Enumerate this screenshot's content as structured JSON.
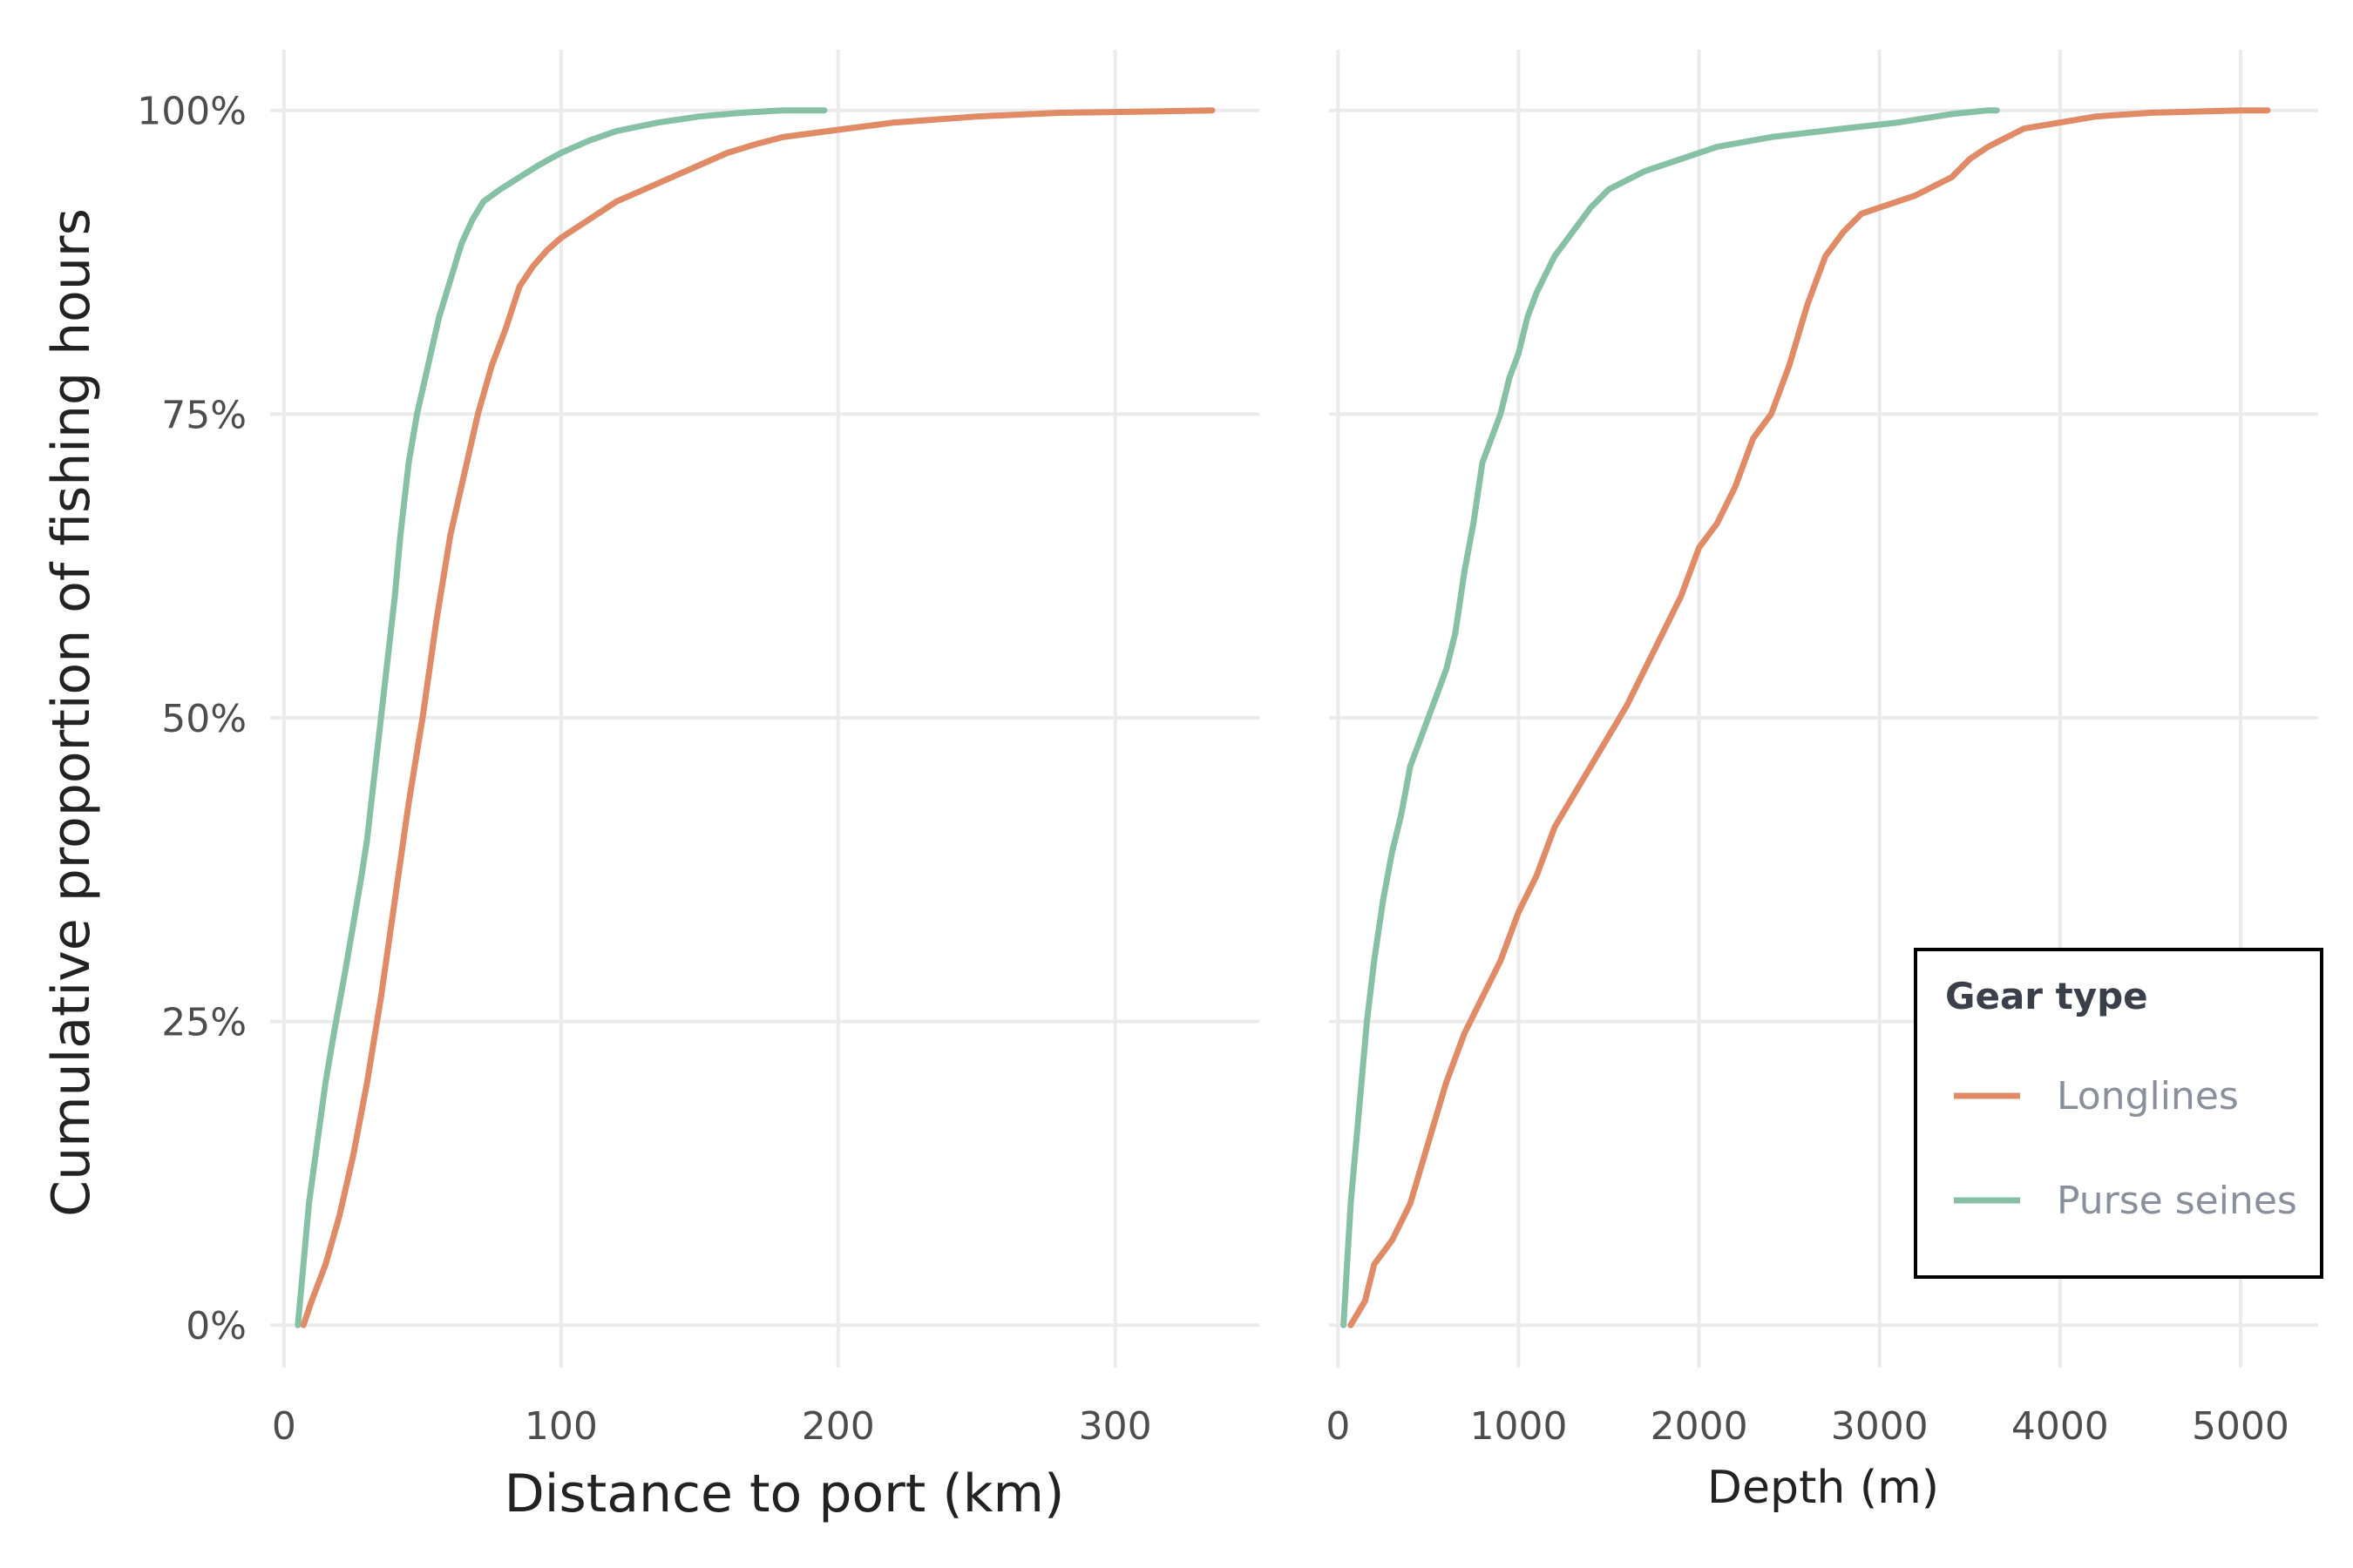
{
  "chart_data": [
    {
      "type": "line",
      "xlabel": "Distance to port (km)",
      "ylabel": "Cumulative proportion of fishing hours",
      "xlim": [
        -5,
        352
      ],
      "ylim": [
        -0.035,
        1.05
      ],
      "x_ticks": [
        0,
        100,
        200,
        300
      ],
      "x_tick_labels": [
        "0",
        "100",
        "200",
        "300"
      ],
      "y_ticks": [
        0,
        0.25,
        0.5,
        0.75,
        1.0
      ],
      "y_tick_labels": [
        "0%",
        "25%",
        "50%",
        "75%",
        "100%"
      ],
      "grid": true,
      "series": [
        {
          "name": "Longlines",
          "color": "#E08B65",
          "points": [
            [
              7,
              0
            ],
            [
              10,
              0.02
            ],
            [
              15,
              0.05
            ],
            [
              20,
              0.09
            ],
            [
              25,
              0.14
            ],
            [
              30,
              0.2
            ],
            [
              35,
              0.27
            ],
            [
              40,
              0.35
            ],
            [
              45,
              0.43
            ],
            [
              50,
              0.5
            ],
            [
              55,
              0.58
            ],
            [
              60,
              0.65
            ],
            [
              65,
              0.7
            ],
            [
              70,
              0.75
            ],
            [
              75,
              0.79
            ],
            [
              80,
              0.82
            ],
            [
              85,
              0.855
            ],
            [
              90,
              0.872
            ],
            [
              95,
              0.885
            ],
            [
              100,
              0.895
            ],
            [
              110,
              0.91
            ],
            [
              120,
              0.925
            ],
            [
              130,
              0.935
            ],
            [
              140,
              0.945
            ],
            [
              150,
              0.955
            ],
            [
              160,
              0.965
            ],
            [
              170,
              0.972
            ],
            [
              180,
              0.978
            ],
            [
              200,
              0.984
            ],
            [
              220,
              0.99
            ],
            [
              250,
              0.995
            ],
            [
              280,
              0.998
            ],
            [
              310,
              0.999
            ],
            [
              335,
              1.0
            ]
          ]
        },
        {
          "name": "Purse seines",
          "color": "#86C1A5",
          "points": [
            [
              5,
              0
            ],
            [
              7,
              0.05
            ],
            [
              9,
              0.1
            ],
            [
              12,
              0.15
            ],
            [
              15,
              0.2
            ],
            [
              18,
              0.24
            ],
            [
              22,
              0.29
            ],
            [
              25,
              0.33
            ],
            [
              28,
              0.37
            ],
            [
              30,
              0.4
            ],
            [
              32,
              0.44
            ],
            [
              34,
              0.48
            ],
            [
              37,
              0.54
            ],
            [
              40,
              0.6
            ],
            [
              42,
              0.65
            ],
            [
              45,
              0.71
            ],
            [
              48,
              0.75
            ],
            [
              52,
              0.79
            ],
            [
              56,
              0.83
            ],
            [
              60,
              0.86
            ],
            [
              64,
              0.89
            ],
            [
              68,
              0.91
            ],
            [
              72,
              0.925
            ],
            [
              78,
              0.935
            ],
            [
              85,
              0.945
            ],
            [
              92,
              0.955
            ],
            [
              100,
              0.965
            ],
            [
              110,
              0.975
            ],
            [
              120,
              0.983
            ],
            [
              135,
              0.99
            ],
            [
              150,
              0.995
            ],
            [
              165,
              0.998
            ],
            [
              180,
              1.0
            ],
            [
              195,
              1.0
            ]
          ]
        }
      ]
    },
    {
      "type": "line",
      "xlabel": "Depth (m)",
      "ylabel": "",
      "xlim": [
        -50,
        5430
      ],
      "ylim": [
        -0.035,
        1.05
      ],
      "x_ticks": [
        0,
        1000,
        2000,
        3000,
        4000,
        5000
      ],
      "x_tick_labels": [
        "0",
        "1000",
        "2000",
        "3000",
        "4000",
        "5000"
      ],
      "y_ticks": [
        0,
        0.25,
        0.5,
        0.75,
        1.0
      ],
      "grid": true,
      "series": [
        {
          "name": "Longlines",
          "color": "#E08B65",
          "points": [
            [
              70,
              0
            ],
            [
              150,
              0.02
            ],
            [
              200,
              0.05
            ],
            [
              300,
              0.07
            ],
            [
              400,
              0.1
            ],
            [
              500,
              0.15
            ],
            [
              600,
              0.2
            ],
            [
              700,
              0.24
            ],
            [
              800,
              0.27
            ],
            [
              900,
              0.3
            ],
            [
              1000,
              0.34
            ],
            [
              1100,
              0.37
            ],
            [
              1200,
              0.41
            ],
            [
              1400,
              0.46
            ],
            [
              1600,
              0.51
            ],
            [
              1800,
              0.57
            ],
            [
              1900,
              0.6
            ],
            [
              2000,
              0.64
            ],
            [
              2100,
              0.66
            ],
            [
              2200,
              0.69
            ],
            [
              2300,
              0.73
            ],
            [
              2400,
              0.75
            ],
            [
              2500,
              0.79
            ],
            [
              2600,
              0.84
            ],
            [
              2700,
              0.88
            ],
            [
              2800,
              0.9
            ],
            [
              2900,
              0.915
            ],
            [
              3000,
              0.92
            ],
            [
              3200,
              0.93
            ],
            [
              3400,
              0.945
            ],
            [
              3500,
              0.96
            ],
            [
              3600,
              0.97
            ],
            [
              3800,
              0.985
            ],
            [
              4000,
              0.99
            ],
            [
              4200,
              0.995
            ],
            [
              4500,
              0.998
            ],
            [
              5000,
              1.0
            ],
            [
              5150,
              1.0
            ]
          ]
        },
        {
          "name": "Purse seines",
          "color": "#86C1A5",
          "points": [
            [
              30,
              0
            ],
            [
              50,
              0.05
            ],
            [
              70,
              0.1
            ],
            [
              100,
              0.15
            ],
            [
              130,
              0.2
            ],
            [
              160,
              0.25
            ],
            [
              200,
              0.3
            ],
            [
              250,
              0.35
            ],
            [
              300,
              0.39
            ],
            [
              350,
              0.42
            ],
            [
              400,
              0.46
            ],
            [
              450,
              0.48
            ],
            [
              500,
              0.5
            ],
            [
              550,
              0.52
            ],
            [
              600,
              0.54
            ],
            [
              650,
              0.57
            ],
            [
              700,
              0.62
            ],
            [
              750,
              0.66
            ],
            [
              800,
              0.71
            ],
            [
              900,
              0.75
            ],
            [
              950,
              0.78
            ],
            [
              1000,
              0.8
            ],
            [
              1050,
              0.83
            ],
            [
              1100,
              0.85
            ],
            [
              1200,
              0.88
            ],
            [
              1300,
              0.9
            ],
            [
              1400,
              0.92
            ],
            [
              1500,
              0.935
            ],
            [
              1700,
              0.95
            ],
            [
              1900,
              0.96
            ],
            [
              2100,
              0.97
            ],
            [
              2400,
              0.978
            ],
            [
              2800,
              0.985
            ],
            [
              3100,
              0.99
            ],
            [
              3400,
              0.997
            ],
            [
              3600,
              1.0
            ],
            [
              3650,
              1.0
            ]
          ]
        }
      ]
    }
  ],
  "legend": {
    "title": "Gear type",
    "entries": [
      {
        "label": "Longlines",
        "color": "#E08B65"
      },
      {
        "label": "Purse seines",
        "color": "#86C1A5"
      }
    ]
  },
  "colors": {
    "grid": "#ebebeb",
    "legend_border": "#000000"
  }
}
